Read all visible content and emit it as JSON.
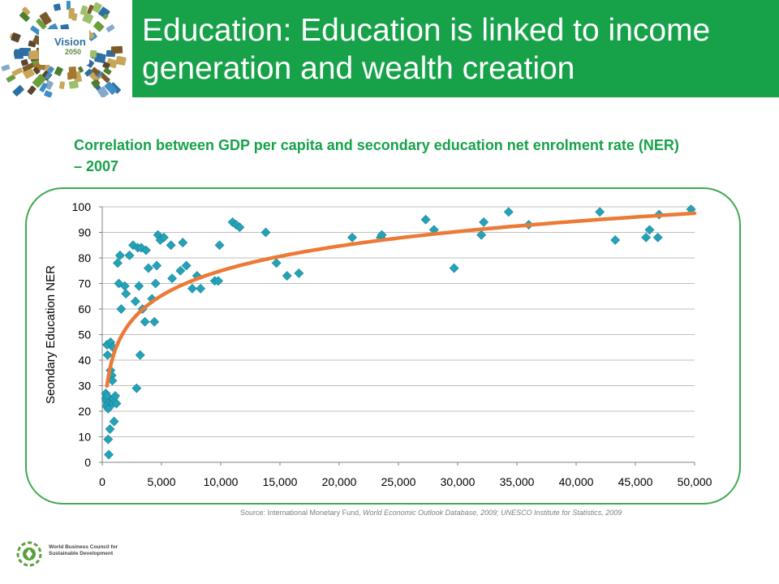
{
  "header": {
    "title": "Education: Education is linked to income generation and wealth creation"
  },
  "logo": {
    "word": "Vision",
    "year": "2050"
  },
  "footer_logo": {
    "name": "World Business Council for Sustainable Development",
    "icon": "wbcsd-globe-icon"
  },
  "source": {
    "prefix": "Source: International Monetary Fund, ",
    "italic": "World Economic Outlook Database, 2009; UNESCO Institute for Statistics, 2009"
  },
  "colors": {
    "brand_green": "#17a24a",
    "marker": "#23a3b8",
    "trendline": "#ec7a36",
    "frame": "#3daa4f"
  },
  "chart_data": {
    "type": "scatter",
    "title": "Correlation between GDP per capita and secondary education net enrolment rate (NER) – 2007",
    "xlabel": "",
    "ylabel": "Seondary Education NER",
    "xlim": [
      0,
      50000
    ],
    "ylim": [
      0,
      100
    ],
    "x_ticks": [
      0,
      5000,
      10000,
      15000,
      20000,
      25000,
      30000,
      35000,
      40000,
      45000,
      50000
    ],
    "x_tick_labels": [
      "0",
      "5,000",
      "10,000",
      "15,000",
      "20,000",
      "25,000",
      "30,000",
      "35,000",
      "40,000",
      "45,000",
      "50,000"
    ],
    "y_ticks": [
      0,
      10,
      20,
      30,
      40,
      50,
      60,
      70,
      80,
      90,
      100
    ],
    "y_tick_labels": [
      "0",
      "10",
      "20",
      "30",
      "40",
      "50",
      "60",
      "70",
      "80",
      "90",
      "100"
    ],
    "grid": "horizontal",
    "marker": "diamond",
    "points": [
      [
        300,
        27
      ],
      [
        300,
        25
      ],
      [
        350,
        24
      ],
      [
        400,
        26
      ],
      [
        450,
        23
      ],
      [
        350,
        22
      ],
      [
        500,
        21
      ],
      [
        400,
        46
      ],
      [
        450,
        42
      ],
      [
        500,
        9
      ],
      [
        550,
        3
      ],
      [
        650,
        13
      ],
      [
        700,
        47
      ],
      [
        700,
        36
      ],
      [
        800,
        34
      ],
      [
        850,
        32
      ],
      [
        900,
        45
      ],
      [
        900,
        23
      ],
      [
        950,
        25
      ],
      [
        1000,
        16
      ],
      [
        1100,
        26
      ],
      [
        1200,
        23
      ],
      [
        1300,
        78
      ],
      [
        1400,
        70
      ],
      [
        1500,
        81
      ],
      [
        1600,
        60
      ],
      [
        1900,
        69
      ],
      [
        2000,
        66
      ],
      [
        2300,
        81
      ],
      [
        2600,
        85
      ],
      [
        2800,
        63
      ],
      [
        2900,
        29
      ],
      [
        3000,
        84
      ],
      [
        3100,
        69
      ],
      [
        3200,
        42
      ],
      [
        3300,
        84
      ],
      [
        3400,
        60
      ],
      [
        3600,
        55
      ],
      [
        3700,
        83
      ],
      [
        3900,
        76
      ],
      [
        4200,
        64
      ],
      [
        4400,
        55
      ],
      [
        4500,
        70
      ],
      [
        4600,
        77
      ],
      [
        4700,
        89
      ],
      [
        4900,
        87
      ],
      [
        5200,
        88
      ],
      [
        5800,
        85
      ],
      [
        5900,
        72
      ],
      [
        6600,
        75
      ],
      [
        6800,
        86
      ],
      [
        7100,
        77
      ],
      [
        7600,
        68
      ],
      [
        8000,
        73
      ],
      [
        8300,
        68
      ],
      [
        9500,
        71
      ],
      [
        9800,
        71
      ],
      [
        9900,
        85
      ],
      [
        11000,
        94
      ],
      [
        11300,
        93
      ],
      [
        11600,
        92
      ],
      [
        13800,
        90
      ],
      [
        14700,
        78
      ],
      [
        15600,
        73
      ],
      [
        16600,
        74
      ],
      [
        21100,
        88
      ],
      [
        23500,
        88
      ],
      [
        23600,
        89
      ],
      [
        27300,
        95
      ],
      [
        28000,
        91
      ],
      [
        29700,
        76
      ],
      [
        32000,
        89
      ],
      [
        32200,
        94
      ],
      [
        34300,
        98
      ],
      [
        36000,
        93
      ],
      [
        42000,
        98
      ],
      [
        43300,
        87
      ],
      [
        45900,
        88
      ],
      [
        46200,
        91
      ],
      [
        46900,
        88
      ],
      [
        47000,
        97
      ],
      [
        49700,
        99
      ]
    ],
    "trendline": {
      "type": "logarithmic",
      "a": 14.0,
      "b": -54.0,
      "x_range": [
        400,
        50000
      ]
    }
  }
}
